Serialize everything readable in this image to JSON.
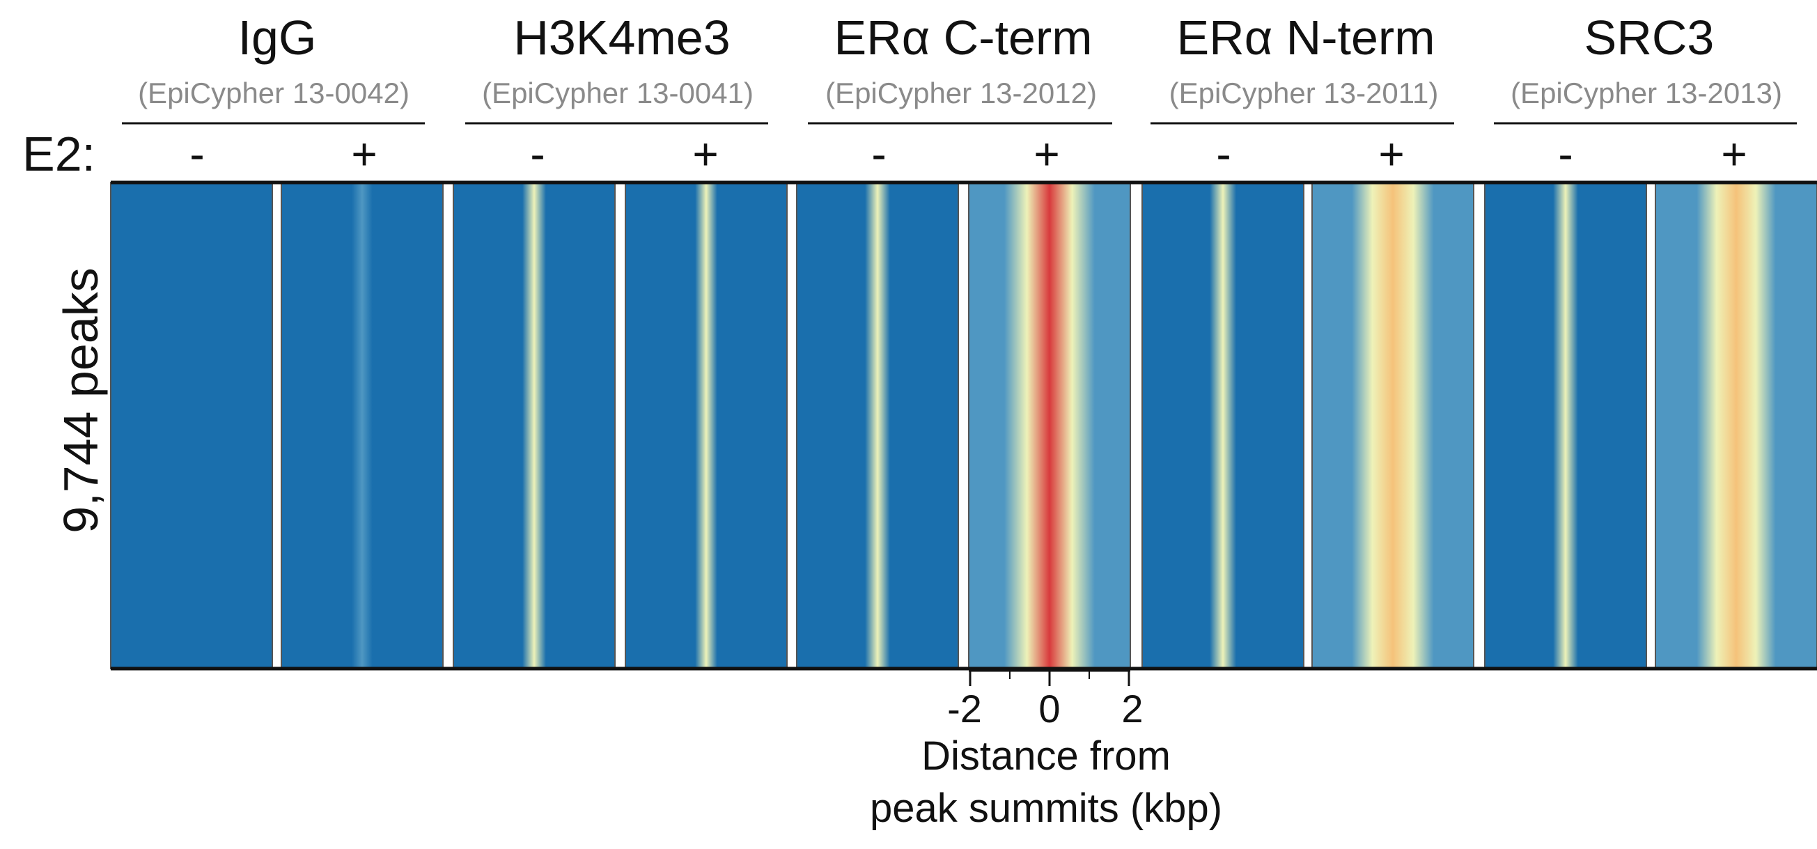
{
  "chart_data": {
    "type": "heatmap",
    "row_label": "9,744 peaks",
    "condition_label": "E2:",
    "xlabel_line1": "Distance from",
    "xlabel_line2": "peak summits (kbp)",
    "x_ticks": [
      "-2",
      "0",
      "2"
    ],
    "x_range": [
      -2,
      2
    ],
    "colors": {
      "low": "#1a6fad",
      "mid_low": "#4f97c2",
      "mid": "#eef2b8",
      "high": "#f5c27a",
      "max": "#d83a3c"
    },
    "targets": [
      {
        "name": "IgG",
        "antibody": "(EpiCypher 13-0042)",
        "panels": [
          {
            "condition": "-",
            "signal": 0.0
          },
          {
            "condition": "+",
            "signal": 0.15
          }
        ]
      },
      {
        "name": "H3K4me3",
        "antibody": "(EpiCypher 13-0041)",
        "panels": [
          {
            "condition": "-",
            "signal": 0.25
          },
          {
            "condition": "+",
            "signal": 0.2
          }
        ]
      },
      {
        "name": "ERα C-term",
        "antibody": "(EpiCypher 13-2012)",
        "panels": [
          {
            "condition": "-",
            "signal": 0.3
          },
          {
            "condition": "+",
            "signal": 1.0
          }
        ]
      },
      {
        "name": "ERα N-term",
        "antibody": "(EpiCypher 13-2011)",
        "panels": [
          {
            "condition": "-",
            "signal": 0.35
          },
          {
            "condition": "+",
            "signal": 0.85
          }
        ]
      },
      {
        "name": "SRC3",
        "antibody": "(EpiCypher 13-2013)",
        "panels": [
          {
            "condition": "-",
            "signal": 0.3
          },
          {
            "condition": "+",
            "signal": 0.8
          }
        ]
      }
    ]
  }
}
